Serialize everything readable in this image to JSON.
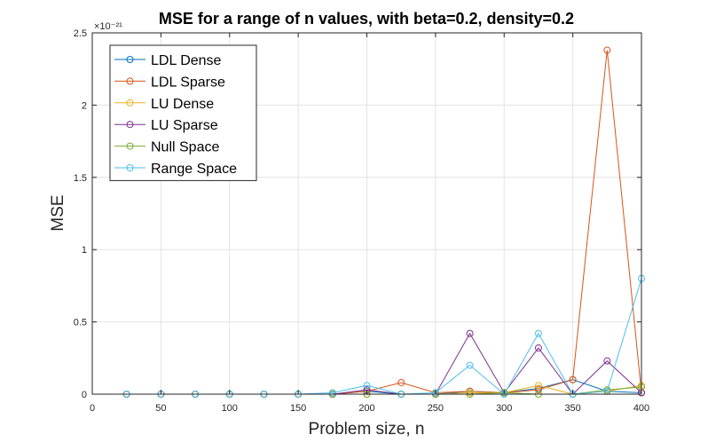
{
  "chart_data": {
    "type": "line",
    "title": "MSE for a range of n values, with beta=0.2, density=0.2",
    "xlabel": "Problem size, n",
    "ylabel": "MSE",
    "y_exponent_label": "×10⁻²¹",
    "xlim": [
      0,
      400
    ],
    "ylim": [
      0,
      2.5
    ],
    "x_ticks": [
      0,
      50,
      100,
      150,
      200,
      250,
      300,
      350,
      400
    ],
    "y_ticks": [
      0,
      0.5,
      1,
      1.5,
      2,
      2.5
    ],
    "y_tick_labels": [
      "0",
      "0.5",
      "1",
      "1.5",
      "2",
      "2.5"
    ],
    "grid": true,
    "legend_position": "top-left",
    "x": [
      25,
      50,
      75,
      100,
      125,
      150,
      175,
      200,
      225,
      250,
      275,
      300,
      325,
      350,
      375,
      400
    ],
    "series": [
      {
        "name": "LDL Dense",
        "color": "#0072BD",
        "values": [
          0,
          0,
          0,
          0,
          0,
          0,
          0,
          0.02,
          0,
          0,
          0.02,
          0.01,
          0.04,
          0.1,
          0.02,
          0.01
        ]
      },
      {
        "name": "LDL Sparse",
        "color": "#D95319",
        "values": [
          0,
          0,
          0,
          0,
          0,
          0,
          0,
          0.02,
          0.08,
          0.01,
          0.02,
          0.01,
          0.03,
          0.1,
          2.38,
          0.01
        ]
      },
      {
        "name": "LU Dense",
        "color": "#EDB120",
        "values": [
          0,
          0,
          0,
          0,
          0,
          0,
          0,
          0,
          0,
          0,
          0.01,
          0.01,
          0.06,
          0,
          0.02,
          0.06
        ]
      },
      {
        "name": "LU Sparse",
        "color": "#7E2F8E",
        "values": [
          0,
          0,
          0,
          0,
          0,
          0,
          0,
          0.03,
          0,
          0,
          0.42,
          0.01,
          0.32,
          0,
          0.23,
          0.01
        ]
      },
      {
        "name": "Null Space",
        "color": "#77AC30",
        "values": [
          0,
          0,
          0,
          0,
          0,
          0,
          0,
          0,
          0,
          0,
          0,
          0.01,
          0,
          0,
          0.03,
          0.05
        ]
      },
      {
        "name": "Range Space",
        "color": "#4DBEEE",
        "values": [
          0,
          0,
          0,
          0,
          0,
          0,
          0.01,
          0.06,
          0,
          0.01,
          0.2,
          0,
          0.42,
          0,
          0.02,
          0.8
        ]
      }
    ]
  }
}
